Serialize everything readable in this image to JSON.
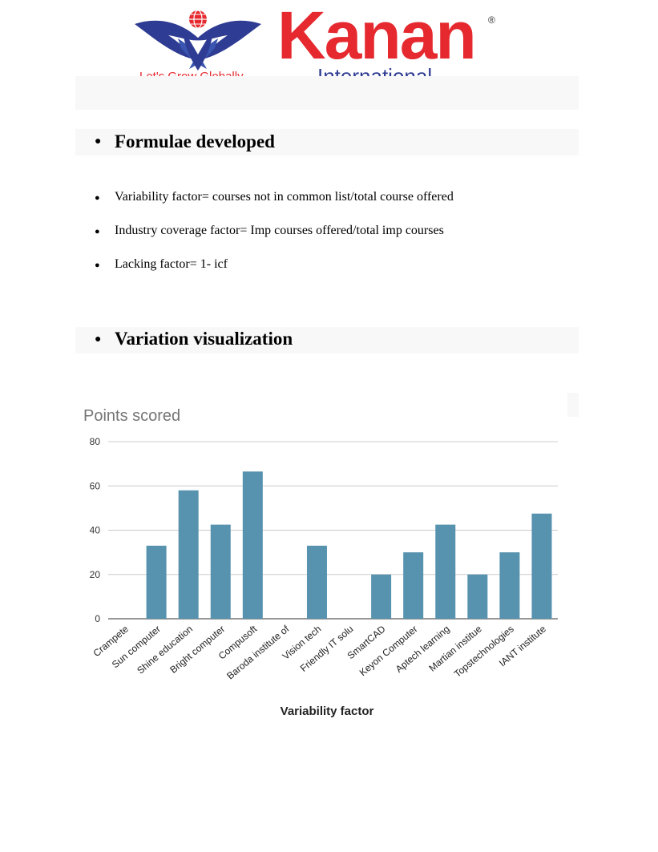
{
  "header": {
    "brand_name": "Kanan",
    "brand_sub": "International",
    "tagline": "Let's Grow Globally",
    "reg_mark": "®",
    "colors": {
      "red": "#e5292f",
      "blue": "#2f3c93"
    }
  },
  "section1": {
    "heading": "Formulae developed",
    "items": [
      "Variability factor= courses not in common list/total course offered",
      "Industry coverage factor= Imp courses offered/total imp courses",
      "Lacking factor= 1- icf"
    ]
  },
  "section2": {
    "heading": "Variation visualization"
  },
  "chart_data": {
    "type": "bar",
    "title": "Points scored",
    "xlabel": "Variability factor",
    "ylabel": "",
    "ylim": [
      0,
      80
    ],
    "yticks": [
      0,
      20,
      40,
      60,
      80
    ],
    "grid": true,
    "bar_color": "#5792af",
    "categories": [
      "Crampete",
      "Sun computer",
      "Shine education",
      "Bright computer",
      "Compusoft",
      "Baroda institute of",
      "Vision tech",
      "Friendly IT solu",
      "SmartCAD",
      "Keyon Computer",
      "Aptech learning",
      "Martian institue",
      "Topstechnologies",
      "IANT institute"
    ],
    "values": [
      0,
      33,
      58,
      42.5,
      66.5,
      0,
      33,
      0,
      20,
      30,
      42.5,
      20,
      30,
      47.5
    ]
  }
}
